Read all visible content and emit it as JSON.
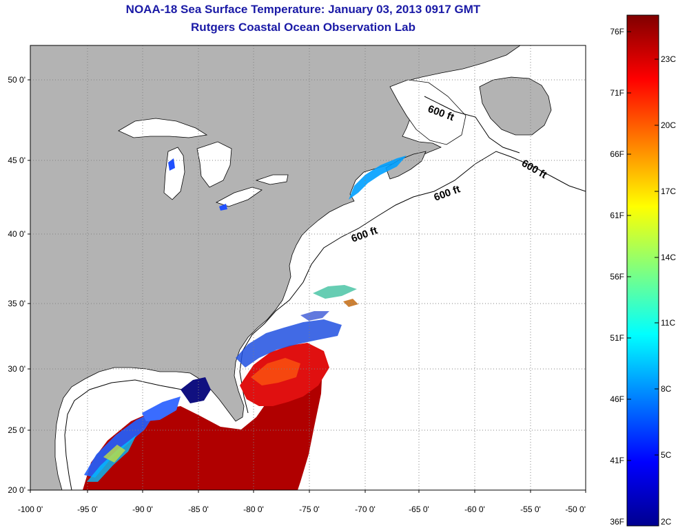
{
  "title": {
    "line1": "NOAA-18 Sea Surface Temperature:  January 03, 2013 0917 GMT",
    "line2": "Rutgers Coastal Ocean Observation Lab"
  },
  "axes": {
    "lat_labels": [
      "50 0'",
      "45 0'",
      "40 0'",
      "35 0'",
      "30 0'",
      "25 0'",
      "20 0'"
    ],
    "lon_labels": [
      "-100 0'",
      "-95 0'",
      "-90 0'",
      "-85 0'",
      "-80 0'",
      "-75 0'",
      "-70 0'",
      "-65 0'",
      "-60 0'",
      "-55 0'",
      "-50 0'"
    ]
  },
  "contours": {
    "label": "600 ft"
  },
  "colorbar": {
    "f_labels": [
      "76F",
      "71F",
      "66F",
      "61F",
      "56F",
      "51F",
      "46F",
      "41F",
      "36F"
    ],
    "c_labels": [
      "23C",
      "20C",
      "17C",
      "14C",
      "11C",
      "8C",
      "5C",
      "2C"
    ]
  },
  "colors": {
    "title": "#1a1aa6",
    "land": "#b3b3b3",
    "ocean": "#ffffff",
    "grid": "#808080",
    "sst_warm": "#b00000",
    "sst_cold": "#0000a0"
  }
}
